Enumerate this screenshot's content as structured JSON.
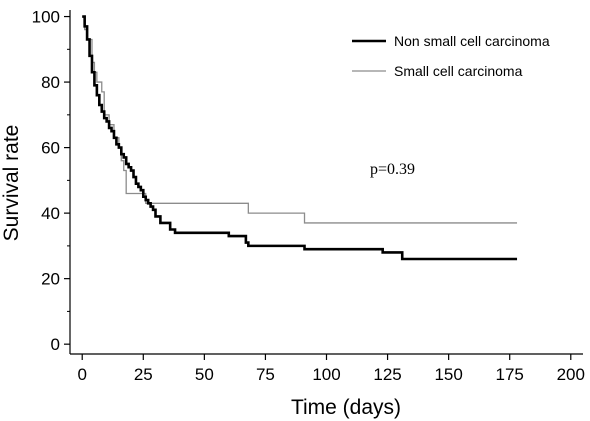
{
  "chart_data": {
    "type": "line",
    "step": true,
    "xlabel": "Time (days)",
    "ylabel": "Survival rate",
    "xlim": [
      -5,
      205
    ],
    "ylim": [
      -3,
      102
    ],
    "xticks": [
      0,
      25,
      50,
      75,
      100,
      125,
      150,
      175,
      200
    ],
    "yticks": [
      0,
      20,
      40,
      60,
      80,
      100
    ],
    "minor_yticks": [
      10,
      30,
      50,
      70,
      90
    ],
    "grid": false,
    "legend_position": "top-right",
    "series": [
      {
        "name": "Non small cell carcinoma",
        "color": "#000000",
        "style": "thick",
        "x": [
          0,
          1,
          2,
          3,
          4,
          5,
          6,
          7,
          8,
          9,
          10,
          11,
          12,
          13,
          14,
          15,
          16,
          17,
          18,
          19,
          20,
          21,
          22,
          23,
          24,
          25,
          26,
          27,
          28,
          29,
          30,
          32,
          34,
          36,
          38,
          40,
          58,
          60,
          67,
          68,
          90,
          91,
          122,
          123,
          130,
          131,
          178
        ],
        "y": [
          100,
          97,
          93,
          88,
          83,
          79,
          76,
          73,
          71,
          69,
          68,
          66,
          65,
          63,
          61,
          60,
          58,
          57,
          55,
          54,
          53,
          51,
          49,
          48,
          47,
          45,
          44,
          43,
          42,
          41,
          39,
          37,
          37,
          35,
          34,
          34,
          34,
          33,
          31,
          30,
          30,
          29,
          29,
          28,
          28,
          26,
          26
        ]
      },
      {
        "name": "Small cell carcinoma",
        "color": "#8c8c8c",
        "style": "thin",
        "x": [
          0,
          1,
          2,
          4,
          5,
          6,
          8,
          9,
          11,
          13,
          15,
          16,
          17,
          18,
          25,
          26,
          67,
          68,
          90,
          91,
          178
        ],
        "y": [
          100,
          96,
          93,
          86,
          83,
          80,
          77,
          70,
          67,
          63,
          60,
          56,
          53,
          46,
          46,
          43,
          43,
          40,
          40,
          37,
          37
        ]
      }
    ],
    "annotations": [
      {
        "text": "p=0.39",
        "x": 127,
        "y": 52
      }
    ]
  }
}
